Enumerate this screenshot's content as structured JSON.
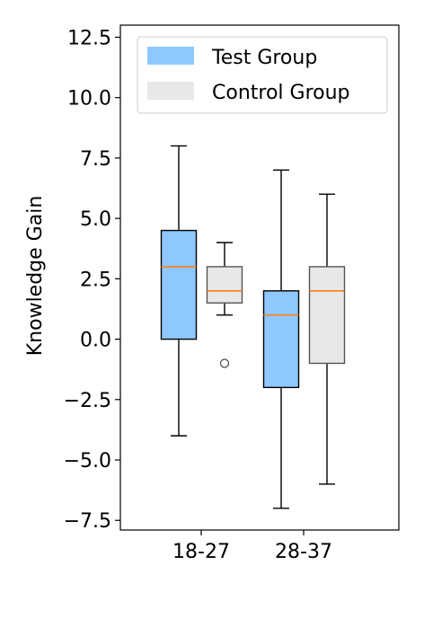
{
  "chart_data": {
    "type": "box",
    "ylabel": "Knowledge Gain",
    "xlabel": "",
    "ylim": [
      -7.9,
      13.0
    ],
    "yticks": [
      -7.5,
      -5.0,
      -2.5,
      0.0,
      2.5,
      5.0,
      7.5,
      10.0,
      12.5
    ],
    "ytick_labels": [
      "−7.5",
      "−5.0",
      "−2.5",
      "0.0",
      "2.5",
      "5.0",
      "7.5",
      "10.0",
      "12.5"
    ],
    "categories": [
      "18-27",
      "28-37"
    ],
    "legend_position": "upper-right",
    "grid": false,
    "series": [
      {
        "name": "Test Group",
        "color": "#8ec8ff",
        "edge_color": "#000000",
        "boxes": [
          {
            "whislo": -4,
            "q1": 0,
            "med": 3,
            "q3": 4.5,
            "whishi": 8,
            "fliers": []
          },
          {
            "whislo": -7,
            "q1": -2,
            "med": 1,
            "q3": 2,
            "whishi": 7,
            "fliers": []
          }
        ]
      },
      {
        "name": "Control Group",
        "color": "#e8e8e8",
        "edge_color": "#555555",
        "boxes": [
          {
            "whislo": 1,
            "q1": 1.5,
            "med": 2,
            "q3": 3,
            "whishi": 4,
            "fliers": [
              -1
            ]
          },
          {
            "whislo": -6,
            "q1": -1,
            "med": 2,
            "q3": 3,
            "whishi": 6,
            "fliers": []
          }
        ]
      }
    ],
    "median_color": "#ff7f0e",
    "legend_patch_colors": [
      "#8ec8ff",
      "#e8e8e8"
    ]
  }
}
